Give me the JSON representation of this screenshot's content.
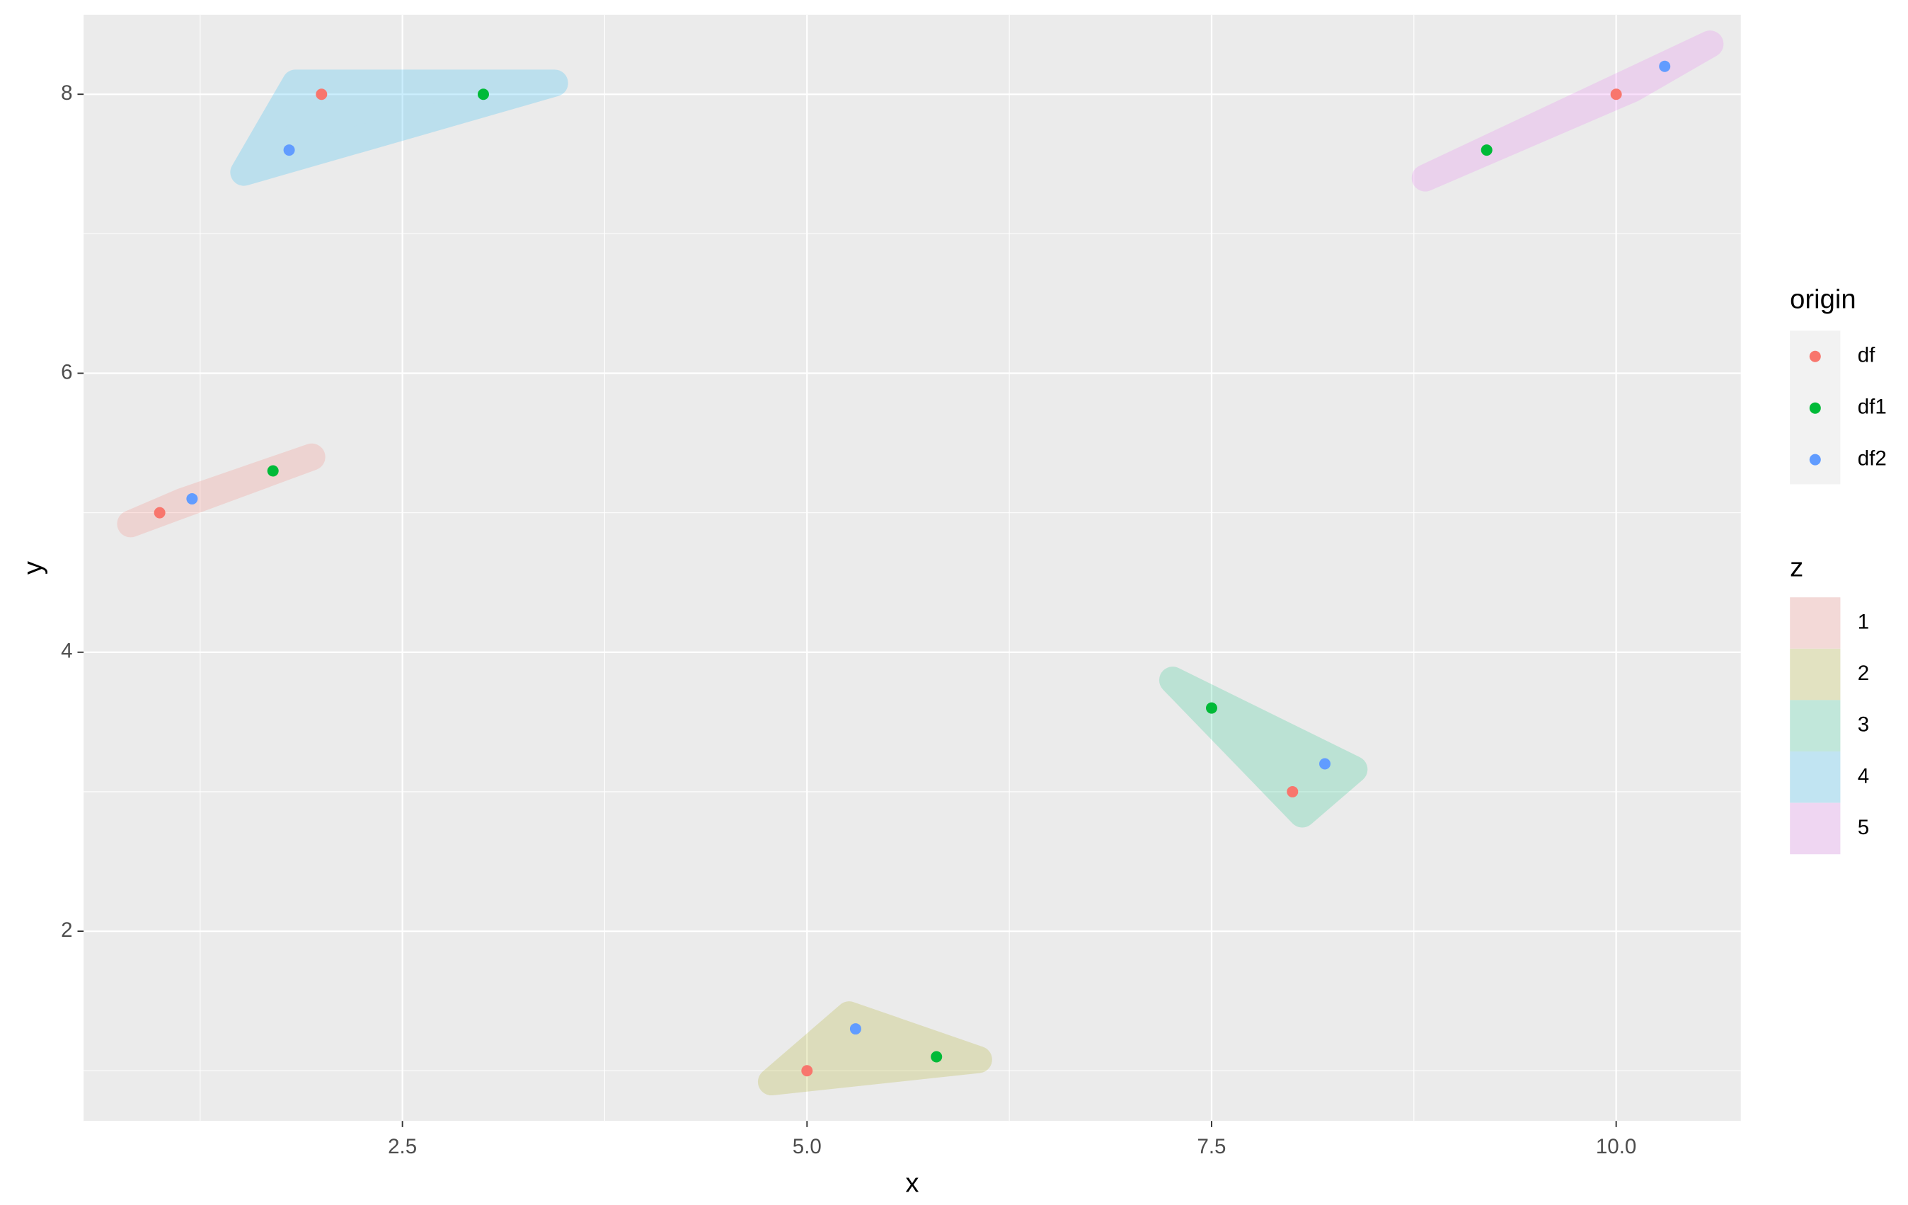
{
  "chart_data": {
    "type": "scatter",
    "x_label": "x",
    "y_label": "y",
    "xlim": [
      0.53,
      10.77
    ],
    "ylim": [
      0.64,
      8.57
    ],
    "xticks": [
      2.5,
      {
        "value": 5,
        "label": "5.0"
      },
      7.5,
      {
        "value": 10,
        "label": "10.0"
      }
    ],
    "yticks": [
      2,
      4,
      6,
      8
    ],
    "grid": true,
    "legend_title": "origin",
    "legend_position": "right",
    "series": [
      {
        "name": "df",
        "color": "#F8766D",
        "x": [
          1,
          5,
          8,
          2,
          10
        ],
        "y": [
          5,
          1,
          3,
          8,
          8
        ]
      },
      {
        "name": "df1",
        "color": "#00BA38",
        "x": [
          1.7,
          5.8,
          7.5,
          3,
          9.2
        ],
        "y": [
          5.3,
          1.1,
          3.6,
          8,
          7.6
        ]
      },
      {
        "name": "df2",
        "color": "#619CFF",
        "x": [
          1.2,
          5.3,
          8.2,
          1.8,
          10.3
        ],
        "y": [
          5.1,
          1.3,
          3.2,
          7.6,
          8.2
        ]
      }
    ],
    "groups": {
      "title": "z",
      "levels": [
        1,
        2,
        3,
        4,
        5
      ],
      "colors": [
        "#F8766D",
        "#A3A500",
        "#00BF7D",
        "#00B0F6",
        "#E76BF3"
      ],
      "opacity": 0.2
    }
  }
}
